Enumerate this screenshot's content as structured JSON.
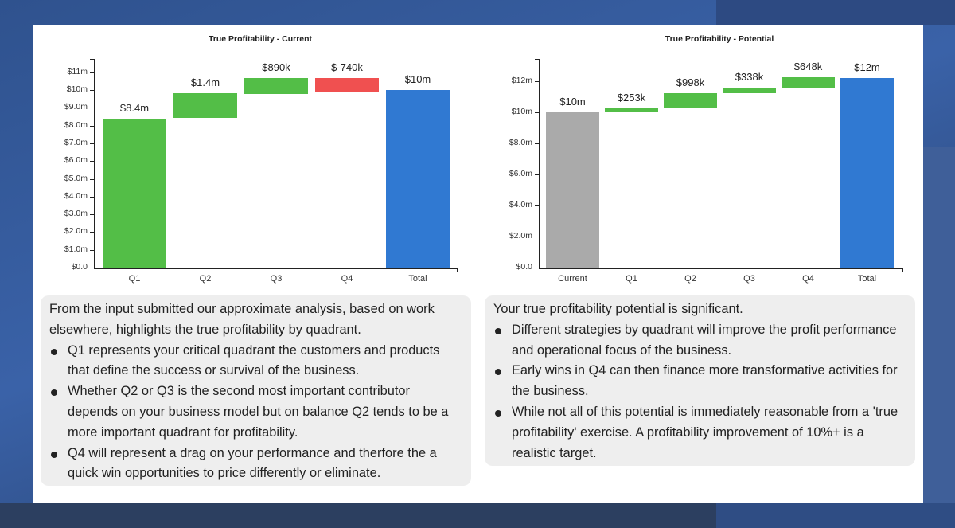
{
  "colors": {
    "increase": "#53be47",
    "decrease": "#f05050",
    "total": "#3079d2",
    "start": "#aaaaaa"
  },
  "chart_data": [
    {
      "type": "bar",
      "subtype": "waterfall",
      "title": "True Profitability - Current",
      "categories": [
        "Q1",
        "Q2",
        "Q3",
        "Q4",
        "Total"
      ],
      "values": [
        8.4,
        1.4,
        0.89,
        -0.74,
        10
      ],
      "value_labels": [
        "$8.4m",
        "$1.4m",
        "$890k",
        "$-740k",
        "$10m"
      ],
      "bar_kind": [
        "increase",
        "increase",
        "increase",
        "decrease",
        "total"
      ],
      "xlabel": "",
      "ylabel": "",
      "ylim": [
        0,
        11.5
      ],
      "yticks": [
        0,
        1,
        2,
        3,
        4,
        5,
        6,
        7,
        8,
        9,
        10,
        11
      ],
      "ytick_labels": [
        "$0.0",
        "$1.0m",
        "$2.0m",
        "$3.0m",
        "$4.0m",
        "$5.0m",
        "$6.0m",
        "$7.0m",
        "$8.0m",
        "$9.0m",
        "$10m",
        "$11m"
      ],
      "grid": false,
      "legend": "none"
    },
    {
      "type": "bar",
      "subtype": "waterfall",
      "title": "True Profitability - Potential",
      "categories": [
        "Current",
        "Q1",
        "Q2",
        "Q3",
        "Q4",
        "Total"
      ],
      "values": [
        10,
        0.253,
        0.998,
        0.338,
        0.648,
        12.2
      ],
      "value_labels": [
        "$10m",
        "$253k",
        "$998k",
        "$338k",
        "$648k",
        "$12m"
      ],
      "bar_kind": [
        "start",
        "increase",
        "increase",
        "increase",
        "increase",
        "total"
      ],
      "xlabel": "",
      "ylabel": "",
      "ylim": [
        0,
        13.2
      ],
      "yticks": [
        0,
        2,
        4,
        6,
        8,
        10,
        12
      ],
      "ytick_labels": [
        "$0.0",
        "$2.0m",
        "$4.0m",
        "$6.0m",
        "$8.0m",
        "$10m",
        "$12m"
      ],
      "grid": false,
      "legend": "none"
    }
  ],
  "notes": {
    "current": {
      "intro": "From the input submitted our approximate analysis, based on work elsewhere, highlights the true profitability by quadrant.",
      "bullets": [
        "Q1 represents your critical quadrant the customers and products that define the success or survival of the business.",
        "Whether Q2 or Q3 is the second most important contributor depends on your business model but on balance Q2 tends to be a more important quadrant for profitability.",
        "Q4 will represent a drag on your performance and therfore the a quick win opportunities to price differently or eliminate."
      ]
    },
    "potential": {
      "intro": "Your true profitability potential is significant.",
      "bullets": [
        "Different strategies by quadrant will improve the profit performance and operational focus of the business.",
        "Early wins in Q4 can then finance more transformative activities for the business.",
        "While not all of this potential is immediately reasonable from a 'true profitability' exercise. A profitability improvement of 10%+ is a realistic target."
      ]
    }
  }
}
